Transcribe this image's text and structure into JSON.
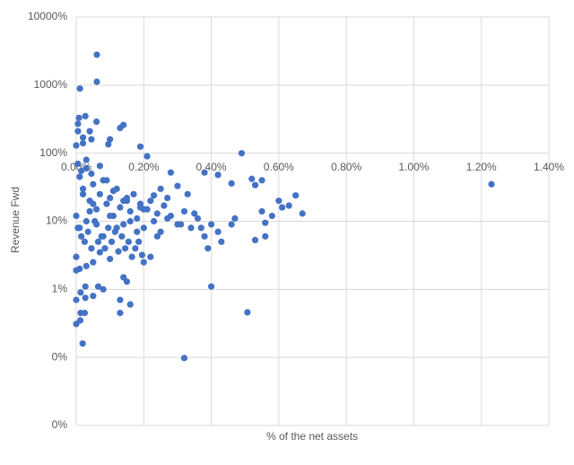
{
  "chart_data": {
    "type": "scatter",
    "color": "#4472c4",
    "log_y": true,
    "grid": true,
    "x_axis_label": "% of the net assets",
    "y_axis_label": "Revenue Fwd",
    "xlim": [
      0,
      1.4
    ],
    "xticks": [
      {
        "value": 0,
        "label": "0.00%"
      },
      {
        "value": 0.2,
        "label": "0.20%"
      },
      {
        "value": 0.4,
        "label": "0.40%"
      },
      {
        "value": 0.6,
        "label": "0.60%"
      },
      {
        "value": 0.8,
        "label": "0.80%"
      },
      {
        "value": 1.0,
        "label": "1.00%"
      },
      {
        "value": 1.2,
        "label": "1.20%"
      },
      {
        "value": 1.4,
        "label": "1.40%"
      }
    ],
    "ylim": [
      0.01,
      10000
    ],
    "yticks": [
      {
        "value": 0.01,
        "label": "0%"
      },
      {
        "value": 0.1,
        "label": "0%"
      },
      {
        "value": 1,
        "label": "1%"
      },
      {
        "value": 10,
        "label": "10%"
      },
      {
        "value": 100,
        "label": "100%"
      },
      {
        "value": 1000,
        "label": "1000%"
      },
      {
        "value": 10000,
        "label": "10000%"
      }
    ],
    "x": [
      0.061,
      0.061,
      0.011,
      1.23,
      0.49,
      0.507,
      0.4,
      0.32,
      0.019,
      0.0,
      0.67,
      0.65,
      0.008,
      0.027,
      0.005,
      0.06,
      0.14,
      0.13,
      0.04,
      0.005,
      0.02,
      0.045,
      0.1,
      0.19,
      0.0,
      0.02,
      0.095,
      0.21,
      0.28,
      0.38,
      0.42,
      0.52,
      0.55,
      0.46,
      0.53,
      0.63,
      0.6,
      0.61,
      0.58,
      0.55,
      0.56,
      0.53,
      0.56,
      0.47,
      0.46,
      0.43,
      0.39,
      0.33,
      0.3,
      0.27,
      0.25,
      0.013,
      0.0,
      0.027,
      0.025,
      0.012,
      0.013,
      0.027,
      0.065,
      0.08,
      0.05,
      0.13,
      0.13,
      0.16,
      0.14,
      0.15,
      0.01,
      0.03,
      0.05,
      0.1,
      0.2,
      0.22,
      0.07,
      0.0,
      0.0,
      0.01,
      0.02,
      0.03,
      0.04,
      0.05,
      0.06,
      0.07,
      0.08,
      0.09,
      0.1,
      0.11,
      0.12,
      0.13,
      0.14,
      0.15,
      0.16,
      0.17,
      0.18,
      0.19,
      0.2,
      0.21,
      0.22,
      0.23,
      0.24,
      0.25,
      0.26,
      0.28,
      0.3,
      0.32,
      0.34,
      0.36,
      0.38,
      0.4,
      0.005,
      0.015,
      0.025,
      0.035,
      0.045,
      0.055,
      0.065,
      0.075,
      0.085,
      0.095,
      0.105,
      0.115,
      0.125,
      0.135,
      0.145,
      0.155,
      0.165,
      0.175,
      0.185,
      0.195,
      0.0,
      0.01,
      0.02,
      0.03,
      0.04,
      0.05,
      0.06,
      0.08,
      0.1,
      0.12,
      0.14,
      0.16,
      0.18,
      0.2,
      0.24,
      0.27,
      0.31,
      0.35,
      0.37,
      0.42,
      0.005,
      0.015,
      0.03,
      0.045,
      0.07,
      0.09,
      0.11,
      0.15,
      0.19,
      0.23
    ],
    "values": [
      2800,
      1120,
      890,
      35,
      100,
      0.46,
      1.1,
      0.098,
      0.16,
      0.31,
      13,
      24,
      330,
      350,
      270,
      290,
      260,
      235,
      210,
      210,
      170,
      160,
      160,
      125,
      130,
      140,
      135,
      90,
      52,
      52,
      48,
      42,
      40,
      36,
      34,
      17,
      20,
      16,
      12,
      14,
      9.5,
      5.3,
      6,
      11,
      9,
      5,
      4,
      25,
      33,
      22,
      30,
      0.9,
      0.7,
      0.75,
      0.45,
      0.35,
      0.45,
      1.1,
      1.1,
      1.0,
      0.8,
      0.45,
      0.7,
      0.6,
      1.5,
      1.3,
      2,
      2.2,
      2.5,
      2.8,
      2.5,
      3,
      3.5,
      3,
      1.9,
      45,
      30,
      60,
      20,
      35,
      15,
      25,
      40,
      18,
      22,
      12,
      30,
      16,
      9,
      20,
      14,
      25,
      11,
      18,
      8,
      15,
      20,
      10,
      13,
      7,
      17,
      12,
      9,
      14,
      8,
      11,
      6,
      9,
      8,
      6,
      5,
      7,
      4,
      10,
      5,
      6,
      4,
      8,
      5,
      7,
      3.6,
      6,
      4,
      5,
      3,
      4,
      5,
      3.2,
      12,
      8,
      25,
      10,
      14,
      18,
      9,
      6,
      12,
      8,
      20,
      10,
      7,
      15,
      6,
      11,
      9,
      13,
      8,
      7,
      70,
      55,
      80,
      50,
      65,
      40,
      28,
      22,
      16,
      24
    ]
  }
}
